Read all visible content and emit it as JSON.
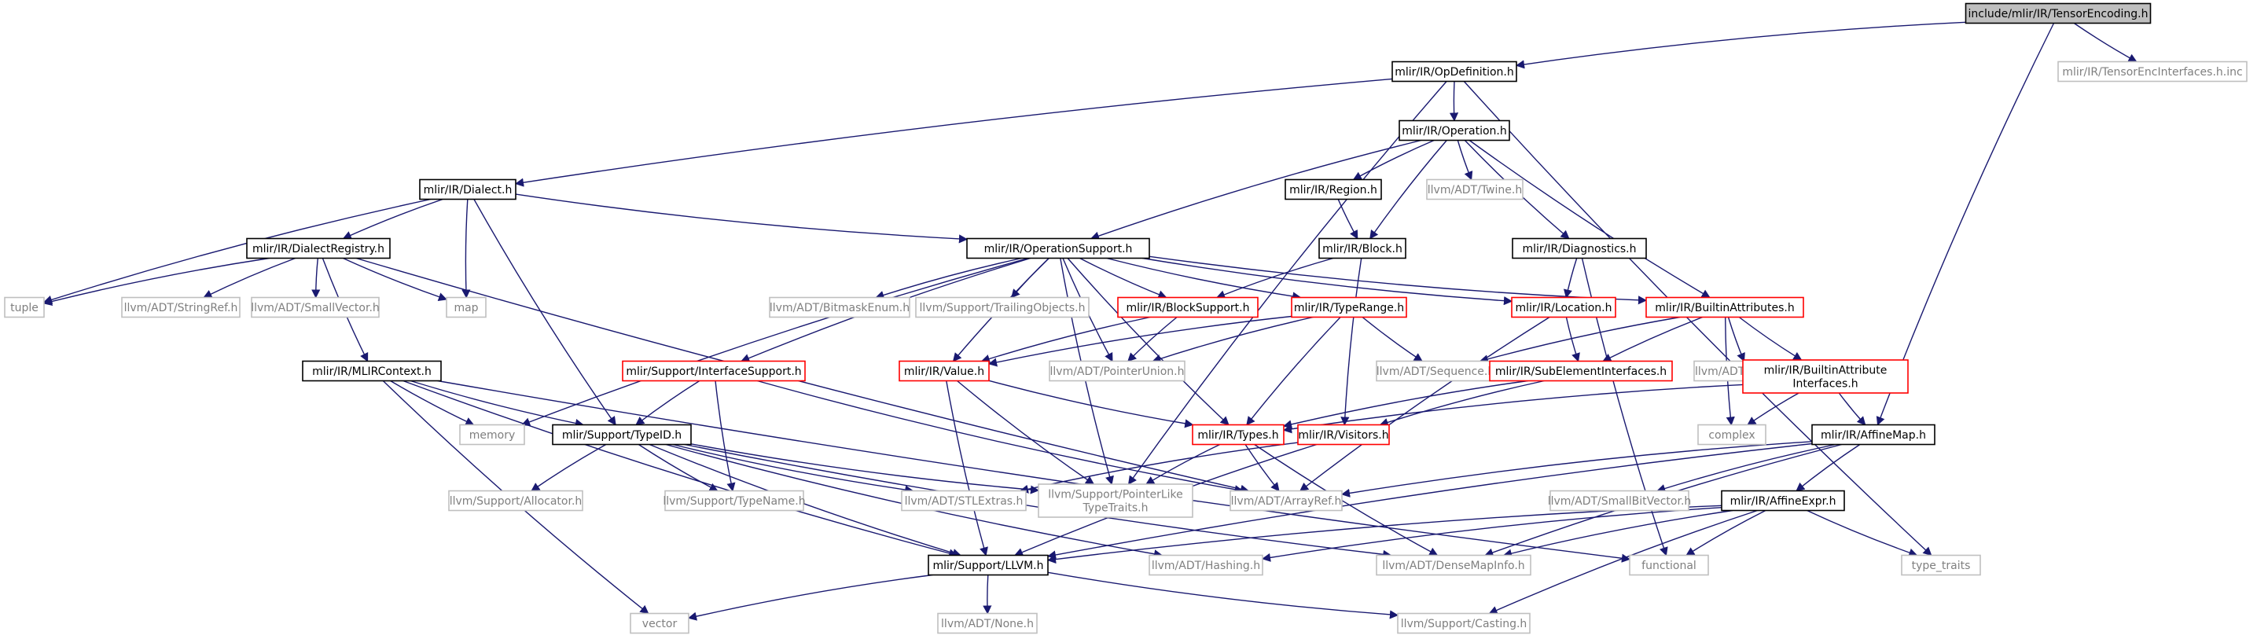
{
  "graph": {
    "nodes": [
      {
        "id": "root",
        "label": [
          "include/mlir/IR/TensorEncoding.h"
        ],
        "kind": "root"
      },
      {
        "id": "opdef",
        "label": [
          "mlir/IR/OpDefinition.h"
        ],
        "kind": "normal"
      },
      {
        "id": "tenc",
        "label": [
          "mlir/IR/TensorEncInterfaces.h.inc"
        ],
        "kind": "external"
      },
      {
        "id": "operation",
        "label": [
          "mlir/IR/Operation.h"
        ],
        "kind": "normal"
      },
      {
        "id": "dialect",
        "label": [
          "mlir/IR/Dialect.h"
        ],
        "kind": "normal"
      },
      {
        "id": "region",
        "label": [
          "mlir/IR/Region.h"
        ],
        "kind": "normal"
      },
      {
        "id": "twine",
        "label": [
          "llvm/ADT/Twine.h"
        ],
        "kind": "external"
      },
      {
        "id": "block",
        "label": [
          "mlir/IR/Block.h"
        ],
        "kind": "normal"
      },
      {
        "id": "diagnostics",
        "label": [
          "mlir/IR/Diagnostics.h"
        ],
        "kind": "normal"
      },
      {
        "id": "dialectreg",
        "label": [
          "mlir/IR/DialectRegistry.h"
        ],
        "kind": "normal"
      },
      {
        "id": "opsupport",
        "label": [
          "mlir/IR/OperationSupport.h"
        ],
        "kind": "normal"
      },
      {
        "id": "tuple",
        "label": [
          "tuple"
        ],
        "kind": "external"
      },
      {
        "id": "stringref",
        "label": [
          "llvm/ADT/StringRef.h"
        ],
        "kind": "external"
      },
      {
        "id": "smallvector",
        "label": [
          "llvm/ADT/SmallVector.h"
        ],
        "kind": "external"
      },
      {
        "id": "map",
        "label": [
          "map"
        ],
        "kind": "external"
      },
      {
        "id": "bitmask",
        "label": [
          "llvm/ADT/BitmaskEnum.h"
        ],
        "kind": "external"
      },
      {
        "id": "trailing",
        "label": [
          "llvm/Support/TrailingObjects.h"
        ],
        "kind": "external"
      },
      {
        "id": "blocksupport",
        "label": [
          "mlir/IR/BlockSupport.h"
        ],
        "kind": "truncated"
      },
      {
        "id": "typerange",
        "label": [
          "mlir/IR/TypeRange.h"
        ],
        "kind": "truncated"
      },
      {
        "id": "location",
        "label": [
          "mlir/IR/Location.h"
        ],
        "kind": "truncated"
      },
      {
        "id": "builtinattrs",
        "label": [
          "mlir/IR/BuiltinAttributes.h"
        ],
        "kind": "truncated"
      },
      {
        "id": "mlircontext",
        "label": [
          "mlir/IR/MLIRContext.h"
        ],
        "kind": "normal"
      },
      {
        "id": "ifacesupport",
        "label": [
          "mlir/Support/InterfaceSupport.h"
        ],
        "kind": "truncated"
      },
      {
        "id": "value",
        "label": [
          "mlir/IR/Value.h"
        ],
        "kind": "truncated"
      },
      {
        "id": "pointerunion",
        "label": [
          "llvm/ADT/PointerUnion.h"
        ],
        "kind": "external"
      },
      {
        "id": "sequence",
        "label": [
          "llvm/ADT/Sequence.h"
        ],
        "kind": "external"
      },
      {
        "id": "subelem",
        "label": [
          "mlir/IR/SubElementInterfaces.h"
        ],
        "kind": "truncated"
      },
      {
        "id": "apfloat",
        "label": [
          "llvm/ADT/APFloat.h"
        ],
        "kind": "external"
      },
      {
        "id": "builtinattrifaces",
        "label": [
          "mlir/IR/BuiltinAttribute",
          "Interfaces.h"
        ],
        "kind": "truncated"
      },
      {
        "id": "memory",
        "label": [
          "memory"
        ],
        "kind": "external"
      },
      {
        "id": "typeid",
        "label": [
          "mlir/Support/TypeID.h"
        ],
        "kind": "normal"
      },
      {
        "id": "types",
        "label": [
          "mlir/IR/Types.h"
        ],
        "kind": "truncated"
      },
      {
        "id": "visitors",
        "label": [
          "mlir/IR/Visitors.h"
        ],
        "kind": "truncated"
      },
      {
        "id": "complex",
        "label": [
          "complex"
        ],
        "kind": "external"
      },
      {
        "id": "affinemap",
        "label": [
          "mlir/IR/AffineMap.h"
        ],
        "kind": "normal"
      },
      {
        "id": "allocator",
        "label": [
          "llvm/Support/Allocator.h"
        ],
        "kind": "external"
      },
      {
        "id": "typename",
        "label": [
          "llvm/Support/TypeName.h"
        ],
        "kind": "external"
      },
      {
        "id": "stlextras",
        "label": [
          "llvm/ADT/STLExtras.h"
        ],
        "kind": "external"
      },
      {
        "id": "ptrlike",
        "label": [
          "llvm/Support/PointerLike",
          "TypeTraits.h"
        ],
        "kind": "external"
      },
      {
        "id": "arrayref",
        "label": [
          "llvm/ADT/ArrayRef.h"
        ],
        "kind": "external"
      },
      {
        "id": "smallbitvector",
        "label": [
          "llvm/ADT/SmallBitVector.h"
        ],
        "kind": "external"
      },
      {
        "id": "affineexpr",
        "label": [
          "mlir/IR/AffineExpr.h"
        ],
        "kind": "normal"
      },
      {
        "id": "llvmh",
        "label": [
          "mlir/Support/LLVM.h"
        ],
        "kind": "normal"
      },
      {
        "id": "hashing",
        "label": [
          "llvm/ADT/Hashing.h"
        ],
        "kind": "external"
      },
      {
        "id": "densemap",
        "label": [
          "llvm/ADT/DenseMapInfo.h"
        ],
        "kind": "external"
      },
      {
        "id": "functional",
        "label": [
          "functional"
        ],
        "kind": "external"
      },
      {
        "id": "typetraits",
        "label": [
          "type_traits"
        ],
        "kind": "external"
      },
      {
        "id": "vector",
        "label": [
          "vector"
        ],
        "kind": "external"
      },
      {
        "id": "none",
        "label": [
          "llvm/ADT/None.h"
        ],
        "kind": "external"
      },
      {
        "id": "casting",
        "label": [
          "llvm/Support/Casting.h"
        ],
        "kind": "external"
      }
    ],
    "edges": [
      [
        "root",
        "opdef"
      ],
      [
        "root",
        "tenc"
      ],
      [
        "root",
        "affinemap"
      ],
      [
        "opdef",
        "operation"
      ],
      [
        "opdef",
        "dialect"
      ],
      [
        "opdef",
        "typetraits"
      ],
      [
        "opdef",
        "ptrlike"
      ],
      [
        "operation",
        "region"
      ],
      [
        "operation",
        "twine"
      ],
      [
        "operation",
        "block"
      ],
      [
        "operation",
        "diagnostics"
      ],
      [
        "operation",
        "opsupport"
      ],
      [
        "operation",
        "builtinattrs"
      ],
      [
        "region",
        "block"
      ],
      [
        "block",
        "blocksupport"
      ],
      [
        "block",
        "visitors"
      ],
      [
        "diagnostics",
        "location"
      ],
      [
        "diagnostics",
        "functional"
      ],
      [
        "dialect",
        "dialectreg"
      ],
      [
        "dialect",
        "opsupport"
      ],
      [
        "dialect",
        "tuple"
      ],
      [
        "dialect",
        "map"
      ],
      [
        "dialect",
        "typeid"
      ],
      [
        "dialectreg",
        "tuple"
      ],
      [
        "dialectreg",
        "stringref"
      ],
      [
        "dialectreg",
        "smallvector"
      ],
      [
        "dialectreg",
        "map"
      ],
      [
        "dialectreg",
        "mlircontext"
      ],
      [
        "dialectreg",
        "arrayref"
      ],
      [
        "opsupport",
        "bitmask"
      ],
      [
        "opsupport",
        "trailing"
      ],
      [
        "opsupport",
        "blocksupport"
      ],
      [
        "opsupport",
        "typerange"
      ],
      [
        "opsupport",
        "location"
      ],
      [
        "opsupport",
        "builtinattrs"
      ],
      [
        "opsupport",
        "ifacesupport"
      ],
      [
        "opsupport",
        "value"
      ],
      [
        "opsupport",
        "pointerunion"
      ],
      [
        "opsupport",
        "memory"
      ],
      [
        "opsupport",
        "ptrlike"
      ],
      [
        "opsupport",
        "types"
      ],
      [
        "blocksupport",
        "value"
      ],
      [
        "blocksupport",
        "pointerunion"
      ],
      [
        "typerange",
        "value"
      ],
      [
        "typerange",
        "pointerunion"
      ],
      [
        "typerange",
        "sequence"
      ],
      [
        "typerange",
        "types"
      ],
      [
        "location",
        "subelem"
      ],
      [
        "location",
        "arrayref"
      ],
      [
        "builtinattrs",
        "subelem"
      ],
      [
        "builtinattrs",
        "apfloat"
      ],
      [
        "builtinattrs",
        "builtinattrifaces"
      ],
      [
        "builtinattrs",
        "sequence"
      ],
      [
        "builtinattrs",
        "complex"
      ],
      [
        "builtinattrifaces",
        "affinemap"
      ],
      [
        "builtinattrifaces",
        "types"
      ],
      [
        "builtinattrifaces",
        "complex"
      ],
      [
        "mlircontext",
        "memory"
      ],
      [
        "mlircontext",
        "typeid"
      ],
      [
        "mlircontext",
        "llvmh"
      ],
      [
        "mlircontext",
        "vector"
      ],
      [
        "mlircontext",
        "functional"
      ],
      [
        "ifacesupport",
        "typeid"
      ],
      [
        "ifacesupport",
        "typename"
      ],
      [
        "ifacesupport",
        "arrayref"
      ],
      [
        "value",
        "types"
      ],
      [
        "value",
        "ptrlike"
      ],
      [
        "value",
        "llvmh"
      ],
      [
        "subelem",
        "types"
      ],
      [
        "subelem",
        "visitors"
      ],
      [
        "typeid",
        "allocator"
      ],
      [
        "typeid",
        "typename"
      ],
      [
        "typeid",
        "stlextras"
      ],
      [
        "typeid",
        "ptrlike"
      ],
      [
        "typeid",
        "llvmh"
      ],
      [
        "typeid",
        "hashing"
      ],
      [
        "typeid",
        "densemap"
      ],
      [
        "types",
        "arrayref"
      ],
      [
        "types",
        "ptrlike"
      ],
      [
        "types",
        "densemap"
      ],
      [
        "visitors",
        "stlextras"
      ],
      [
        "visitors",
        "llvmh"
      ],
      [
        "affinemap",
        "affineexpr"
      ],
      [
        "affinemap",
        "smallbitvector"
      ],
      [
        "affinemap",
        "densemap"
      ],
      [
        "affinemap",
        "llvmh"
      ],
      [
        "affinemap",
        "arrayref"
      ],
      [
        "affineexpr",
        "llvmh"
      ],
      [
        "affineexpr",
        "hashing"
      ],
      [
        "affineexpr",
        "densemap"
      ],
      [
        "affineexpr",
        "functional"
      ],
      [
        "affineexpr",
        "typetraits"
      ],
      [
        "affineexpr",
        "casting"
      ],
      [
        "llvmh",
        "vector"
      ],
      [
        "llvmh",
        "none"
      ],
      [
        "llvmh",
        "casting"
      ]
    ]
  },
  "colors": {
    "edge": "#191970",
    "normal_border": "#000000",
    "truncated_border": "#ff0000",
    "external_border": "#bfbfbf",
    "external_text": "#7f7f7f",
    "root_fill": "#bfbfbf",
    "node_fill": "#ffffff",
    "text": "#000000"
  }
}
